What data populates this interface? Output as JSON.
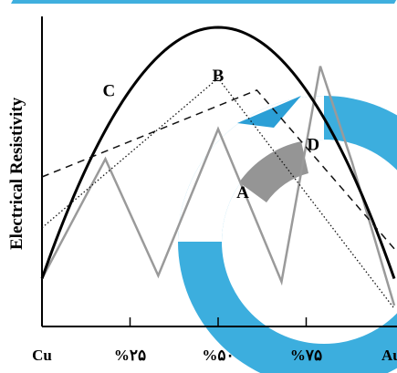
{
  "chart_data": {
    "type": "line",
    "title": "",
    "xlabel": "",
    "ylabel": "Electrical Resistivity",
    "x_ticks": [
      {
        "x": 0,
        "label": "Cu"
      },
      {
        "x": 25,
        "label": "%۲۵"
      },
      {
        "x": 50,
        "label": "%۵۰"
      },
      {
        "x": 75,
        "label": "%۷۵"
      },
      {
        "x": 100,
        "label": "Au"
      }
    ],
    "xlim": [
      0,
      100
    ],
    "ylim": [
      0,
      100
    ],
    "grid": false,
    "series": [
      {
        "name": "A",
        "style": "solid-gray",
        "x": [
          0,
          18,
          33,
          50,
          68,
          79,
          88,
          100
        ],
        "y": [
          16,
          56,
          17,
          66,
          15,
          87,
          55,
          7
        ]
      },
      {
        "name": "B",
        "style": "dotted",
        "x": [
          0,
          50,
          100
        ],
        "y": [
          33,
          83,
          6
        ]
      },
      {
        "name": "C",
        "style": "solid-bold",
        "x": [
          0,
          10,
          20,
          30,
          40,
          50,
          60,
          70,
          80,
          90,
          100
        ],
        "y": [
          16,
          49,
          73,
          88,
          97,
          100,
          97,
          88,
          73,
          49,
          16
        ]
      },
      {
        "name": "D",
        "style": "dashed",
        "x": [
          0,
          61,
          100
        ],
        "y": [
          50,
          79,
          26
        ]
      }
    ],
    "annotations": [
      {
        "text": "C",
        "x": 19,
        "y": 77
      },
      {
        "text": "B",
        "x": 50,
        "y": 82
      },
      {
        "text": "D",
        "x": 77,
        "y": 59
      },
      {
        "text": "A",
        "x": 57,
        "y": 43
      }
    ]
  }
}
